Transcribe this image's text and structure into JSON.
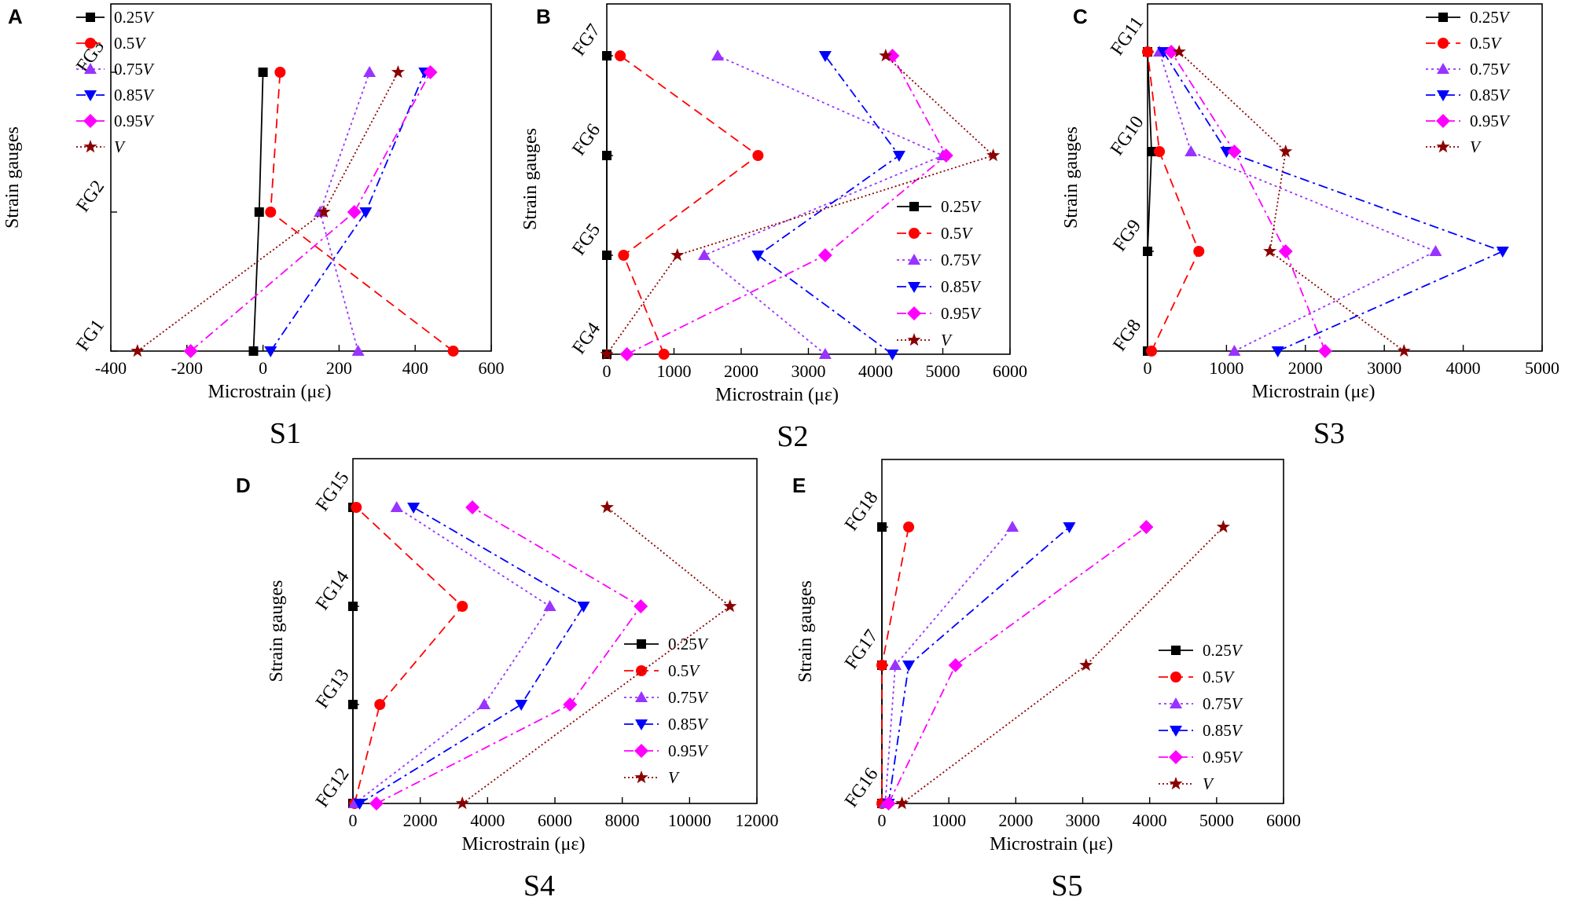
{
  "chart_data": [
    {
      "type": "line",
      "panel": "A",
      "caption": "S1",
      "xlabel": "Microstrain (με)",
      "ylabel": "Strain gauges",
      "xlim": [
        -400,
        600
      ],
      "xticks": [
        -400,
        -200,
        0,
        200,
        400,
        600
      ],
      "categories": [
        "FG1",
        "FG2",
        "FG3"
      ],
      "legend_position": "top-left",
      "series": [
        {
          "name": "0.25V",
          "base": "0.25",
          "values": [
            -25,
            -10,
            0
          ]
        },
        {
          "name": "0.5V",
          "base": "0.5",
          "values": [
            500,
            20,
            45
          ]
        },
        {
          "name": "0.75V",
          "base": "0.75",
          "values": [
            250,
            150,
            280
          ]
        },
        {
          "name": "0.85V",
          "base": "0.85",
          "values": [
            20,
            270,
            425
          ]
        },
        {
          "name": "0.95V",
          "base": "0.95",
          "values": [
            -190,
            240,
            440
          ]
        },
        {
          "name": "V",
          "base": "",
          "values": [
            -330,
            160,
            355
          ]
        }
      ]
    },
    {
      "type": "line",
      "panel": "B",
      "caption": "S2",
      "xlabel": "Microstrain (με)",
      "ylabel": "Strain gauges",
      "xlim": [
        0,
        6000
      ],
      "xticks": [
        0,
        1000,
        2000,
        3000,
        4000,
        5000,
        6000
      ],
      "categories": [
        "FG4",
        "FG5",
        "FG6",
        "FG7"
      ],
      "legend_position": "right",
      "series": [
        {
          "name": "0.25V",
          "base": "0.25",
          "values": [
            0,
            0,
            0,
            0
          ]
        },
        {
          "name": "0.5V",
          "base": "0.5",
          "values": [
            850,
            250,
            2250,
            200
          ]
        },
        {
          "name": "0.75V",
          "base": "0.75",
          "values": [
            3250,
            1450,
            5000,
            1650
          ]
        },
        {
          "name": "0.85V",
          "base": "0.85",
          "values": [
            4250,
            2250,
            4350,
            3250
          ]
        },
        {
          "name": "0.95V",
          "base": "0.95",
          "values": [
            300,
            3250,
            5050,
            4250
          ]
        },
        {
          "name": "V",
          "base": "",
          "values": [
            0,
            1050,
            5750,
            4150
          ]
        }
      ]
    },
    {
      "type": "line",
      "panel": "C",
      "caption": "S3",
      "xlabel": "Microstrain (με)",
      "ylabel": "Strain gauges",
      "xlim": [
        0,
        5000
      ],
      "xticks": [
        0,
        1000,
        2000,
        3000,
        4000,
        5000
      ],
      "categories": [
        "FG8",
        "FG9",
        "FG10",
        "FG11"
      ],
      "legend_position": "top-right",
      "series": [
        {
          "name": "0.25V",
          "base": "0.25",
          "values": [
            0,
            0,
            50,
            0
          ]
        },
        {
          "name": "0.5V",
          "base": "0.5",
          "values": [
            50,
            650,
            150,
            0
          ]
        },
        {
          "name": "0.75V",
          "base": "0.75",
          "values": [
            1100,
            3650,
            550,
            150
          ]
        },
        {
          "name": "0.85V",
          "base": "0.85",
          "values": [
            1650,
            4500,
            1000,
            200
          ]
        },
        {
          "name": "0.95V",
          "base": "0.95",
          "values": [
            2250,
            1750,
            1100,
            300
          ]
        },
        {
          "name": "V",
          "base": "",
          "values": [
            3250,
            1550,
            1750,
            400
          ]
        }
      ]
    },
    {
      "type": "line",
      "panel": "D",
      "caption": "S4",
      "xlabel": "Microstrain (με)",
      "ylabel": "Strain gauges",
      "xlim": [
        0,
        12000
      ],
      "xticks": [
        0,
        2000,
        4000,
        6000,
        8000,
        10000,
        12000
      ],
      "categories": [
        "FG12",
        "FG13",
        "FG14",
        "FG15"
      ],
      "legend_position": "right",
      "series": [
        {
          "name": "0.25V",
          "base": "0.25",
          "values": [
            0,
            0,
            0,
            0
          ]
        },
        {
          "name": "0.5V",
          "base": "0.5",
          "values": [
            50,
            800,
            3250,
            100
          ]
        },
        {
          "name": "0.75V",
          "base": "0.75",
          "values": [
            50,
            3900,
            5850,
            1300
          ]
        },
        {
          "name": "0.85V",
          "base": "0.85",
          "values": [
            200,
            5000,
            6850,
            1800
          ]
        },
        {
          "name": "0.95V",
          "base": "0.95",
          "values": [
            700,
            6450,
            8550,
            3550
          ]
        },
        {
          "name": "V",
          "base": "",
          "values": [
            3250,
            null,
            11200,
            7550
          ]
        }
      ]
    },
    {
      "type": "line",
      "panel": "E",
      "caption": "S5",
      "xlabel": "Microstrain (με)",
      "ylabel": "Strain gauges",
      "xlim": [
        0,
        6000
      ],
      "xticks": [
        0,
        1000,
        2000,
        3000,
        4000,
        5000,
        6000
      ],
      "categories": [
        "FG16",
        "FG17",
        "FG18"
      ],
      "legend_position": "right",
      "series": [
        {
          "name": "0.25V",
          "base": "0.25",
          "values": [
            0,
            0,
            0
          ]
        },
        {
          "name": "0.5V",
          "base": "0.5",
          "values": [
            0,
            0,
            400
          ]
        },
        {
          "name": "0.75V",
          "base": "0.75",
          "values": [
            50,
            200,
            1950
          ]
        },
        {
          "name": "0.85V",
          "base": "0.85",
          "values": [
            100,
            400,
            2800
          ]
        },
        {
          "name": "0.95V",
          "base": "0.95",
          "values": [
            100,
            1100,
            3950
          ]
        },
        {
          "name": "V",
          "base": "",
          "values": [
            300,
            3050,
            5100
          ]
        }
      ]
    }
  ],
  "style": {
    "colors": [
      "#000000",
      "#ff0000",
      "#9933ff",
      "#0000ff",
      "#ff00ff",
      "#8b0000"
    ],
    "dashes": [
      "",
      "12,7",
      "3,4",
      "12,5,3,5",
      "12,5,3,5",
      "2,3"
    ],
    "markers": [
      "square",
      "circle",
      "triangle-up",
      "triangle-down",
      "diamond",
      "star"
    ]
  }
}
